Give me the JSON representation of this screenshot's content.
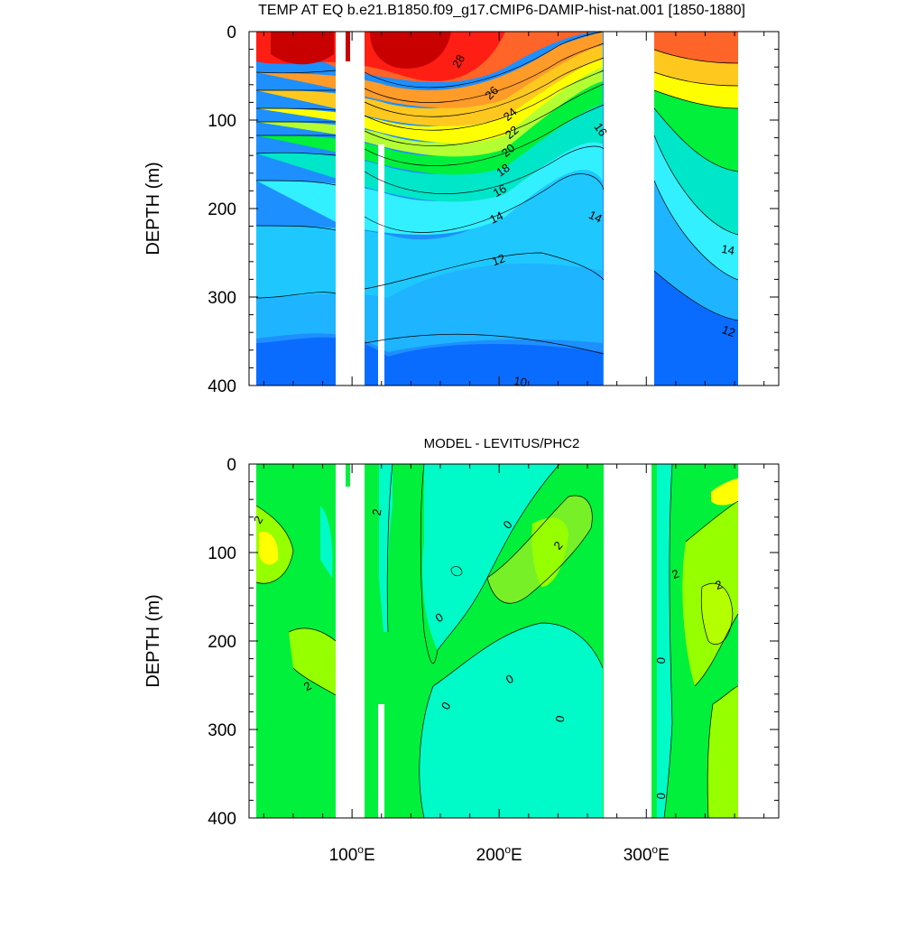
{
  "chart_data": [
    {
      "type": "heatmap",
      "title": "TEMP AT EQ b.e21.B1850.f09_g17.CMIP6-DAMIP-hist-nat.001 [1850-1880]",
      "ylabel": "DEPTH (m)",
      "xlabel": "",
      "ylim": [
        0,
        400
      ],
      "xlim": [
        30,
        390
      ],
      "y_reversed": true,
      "yticks": [
        "0",
        "100",
        "200",
        "300",
        "400"
      ],
      "xticks": [],
      "contour_labels": [
        "28",
        "26",
        "24",
        "22",
        "20",
        "18",
        "16",
        "14",
        "12",
        "10",
        "16",
        "14",
        "14",
        "12"
      ],
      "land_gaps_lon": [
        [
          98,
          118
        ],
        [
          278,
          315
        ]
      ],
      "surface_isotherm_depths": {
        "lon": [
          45,
          60,
          80,
          98,
          118,
          140,
          170,
          200,
          230,
          260,
          278,
          315,
          330,
          350,
          368
        ],
        "t28": [
          40,
          42,
          45,
          48,
          50,
          55,
          45,
          30,
          15,
          5,
          0,
          0,
          0,
          0,
          0
        ],
        "t24": [
          95,
          95,
          95,
          95,
          95,
          105,
          110,
          95,
          75,
          55,
          45,
          0,
          25,
          45,
          50
        ],
        "t20": [
          120,
          120,
          120,
          120,
          130,
          160,
          160,
          140,
          110,
          75,
          60,
          20,
          60,
          80,
          90
        ],
        "t16": [
          150,
          150,
          150,
          150,
          165,
          200,
          205,
          185,
          150,
          115,
          90,
          60,
          140,
          170,
          190
        ],
        "t14": [
          190,
          190,
          190,
          195,
          195,
          235,
          245,
          230,
          200,
          180,
          160,
          200,
          240,
          270,
          280
        ],
        "t12": [
          300,
          300,
          300,
          300,
          280,
          300,
          310,
          295,
          270,
          270,
          280,
          300,
          320,
          340,
          350
        ]
      }
    },
    {
      "type": "heatmap",
      "title": "MODEL - LEVITUS/PHC2",
      "ylabel": "DEPTH (m)",
      "xlabel": "",
      "ylim": [
        0,
        400
      ],
      "xlim": [
        30,
        390
      ],
      "y_reversed": true,
      "yticks": [
        "0",
        "100",
        "200",
        "300",
        "400"
      ],
      "xticks": [
        "100°E",
        "200°E",
        "300°E"
      ],
      "xtick_values": [
        100,
        200,
        300
      ],
      "contour_labels": [
        "2",
        "2",
        "2",
        "0",
        "2",
        "0",
        "0",
        "0",
        "0",
        "2",
        "2",
        "0",
        "0"
      ],
      "land_gaps_lon": [
        [
          98,
          118
        ],
        [
          278,
          315
        ]
      ]
    }
  ]
}
